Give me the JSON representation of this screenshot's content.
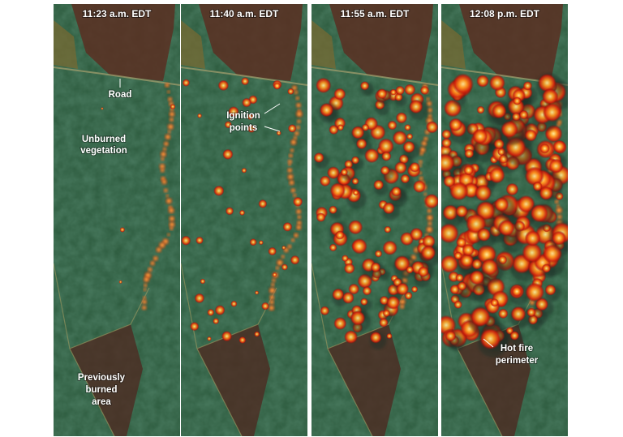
{
  "panels": [
    {
      "time": "11:23 a.m. EDT"
    },
    {
      "time": "11:40 a.m. EDT"
    },
    {
      "time": "11:55 a.m. EDT"
    },
    {
      "time": "12:08 p.m. EDT"
    }
  ],
  "annotations": {
    "road": [
      "Road"
    ],
    "unburned": [
      "Unburned",
      "vegetation"
    ],
    "previously_burned": [
      "Previously",
      "burned",
      "area"
    ],
    "ignition": [
      "Ignition",
      "points"
    ],
    "perimeter": [
      "Hot fire",
      "perimeter"
    ]
  }
}
